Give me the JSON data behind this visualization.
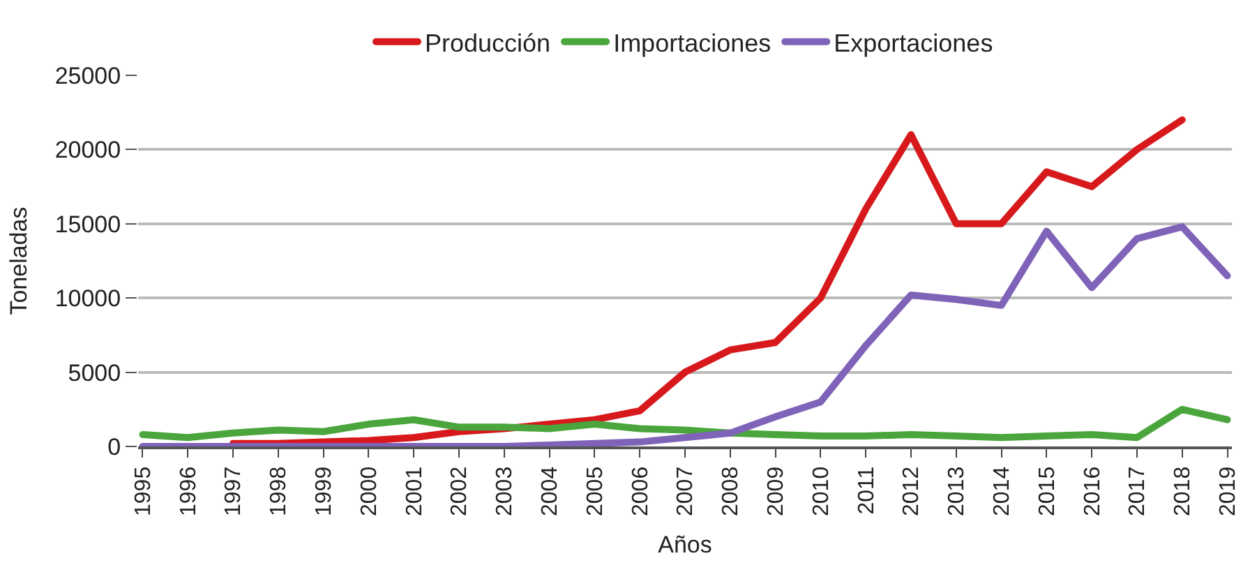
{
  "chart_data": {
    "type": "line",
    "xlabel": "Años",
    "ylabel": "Toneladas",
    "categories": [
      "1995",
      "1996",
      "1997",
      "1998",
      "1999",
      "2000",
      "2001",
      "2002",
      "2003",
      "2004",
      "2005",
      "2006",
      "2007",
      "2008",
      "2009",
      "2010",
      "2011",
      "2012",
      "2013",
      "2014",
      "2015",
      "2016",
      "2017",
      "2018",
      "2019"
    ],
    "series": [
      {
        "name": "Producción",
        "color": "#d7191c",
        "values": [
          null,
          null,
          200,
          200,
          300,
          400,
          600,
          1000,
          1200,
          1500,
          1800,
          2400,
          5000,
          6500,
          7000,
          10000,
          16000,
          21000,
          15000,
          15000,
          18500,
          17500,
          20000,
          22000,
          null
        ]
      },
      {
        "name": "Importaciones",
        "color": "#4aa63c",
        "values": [
          800,
          600,
          900,
          1100,
          1000,
          1500,
          1800,
          1300,
          1300,
          1200,
          1500,
          1200,
          1100,
          900,
          800,
          700,
          700,
          800,
          700,
          600,
          700,
          800,
          600,
          2500,
          1800
        ]
      },
      {
        "name": "Exportaciones",
        "color": "#7f63b8",
        "values": [
          0,
          0,
          0,
          0,
          0,
          0,
          0,
          0,
          0,
          100,
          200,
          300,
          600,
          900,
          2000,
          3000,
          6800,
          10200,
          9900,
          9500,
          14500,
          10700,
          14000,
          14800,
          11500
        ]
      }
    ],
    "ylim": [
      0,
      25000
    ],
    "yticks": [
      0,
      5000,
      10000,
      15000,
      20000,
      25000
    ],
    "grid": "y",
    "legend": "top",
    "marker": "none",
    "line_style": "solid"
  }
}
